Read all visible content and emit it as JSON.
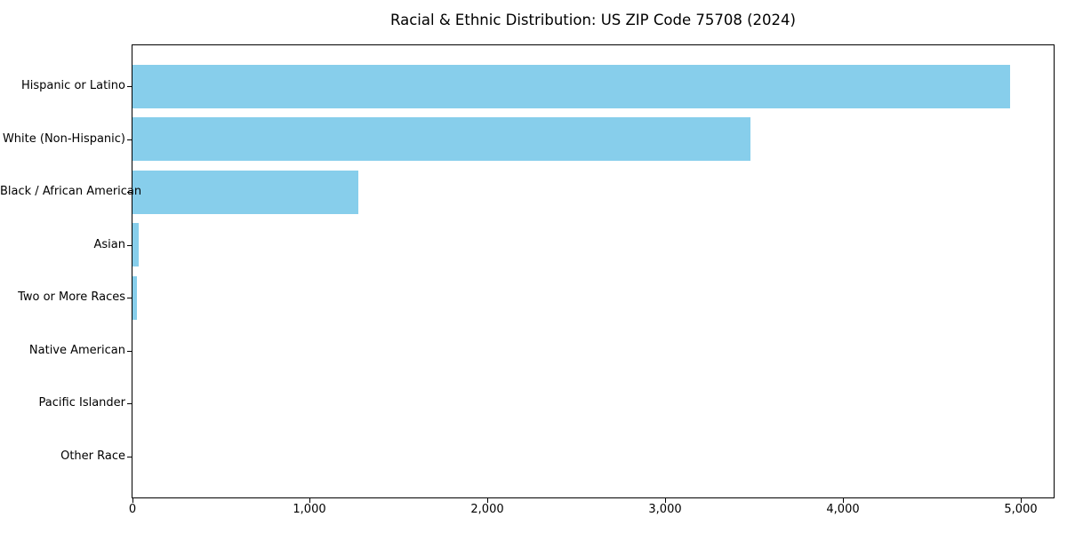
{
  "figure": {
    "background": "#ffffff"
  },
  "chart_data": {
    "type": "bar",
    "orientation": "horizontal",
    "title": "Racial & Ethnic Distribution: US ZIP Code 75708 (2024)",
    "categories": [
      "Hispanic or Latino",
      "White (Non-Hispanic)",
      "Black / African American",
      "Asian",
      "Two or More Races",
      "Native American",
      "Pacific Islander",
      "Other Race"
    ],
    "values": [
      4940,
      3480,
      1270,
      35,
      25,
      0,
      0,
      0
    ],
    "xlabel": "",
    "ylabel": "",
    "xlim": [
      0,
      5190
    ],
    "xticks": [
      0,
      1000,
      2000,
      3000,
      4000,
      5000
    ],
    "xtick_labels": [
      "0",
      "1,000",
      "2,000",
      "3,000",
      "4,000",
      "5,000"
    ],
    "bar_color": "#87CEEB",
    "axis_color": "#000000",
    "text_color": "#000000",
    "grid": false,
    "legend": null
  }
}
